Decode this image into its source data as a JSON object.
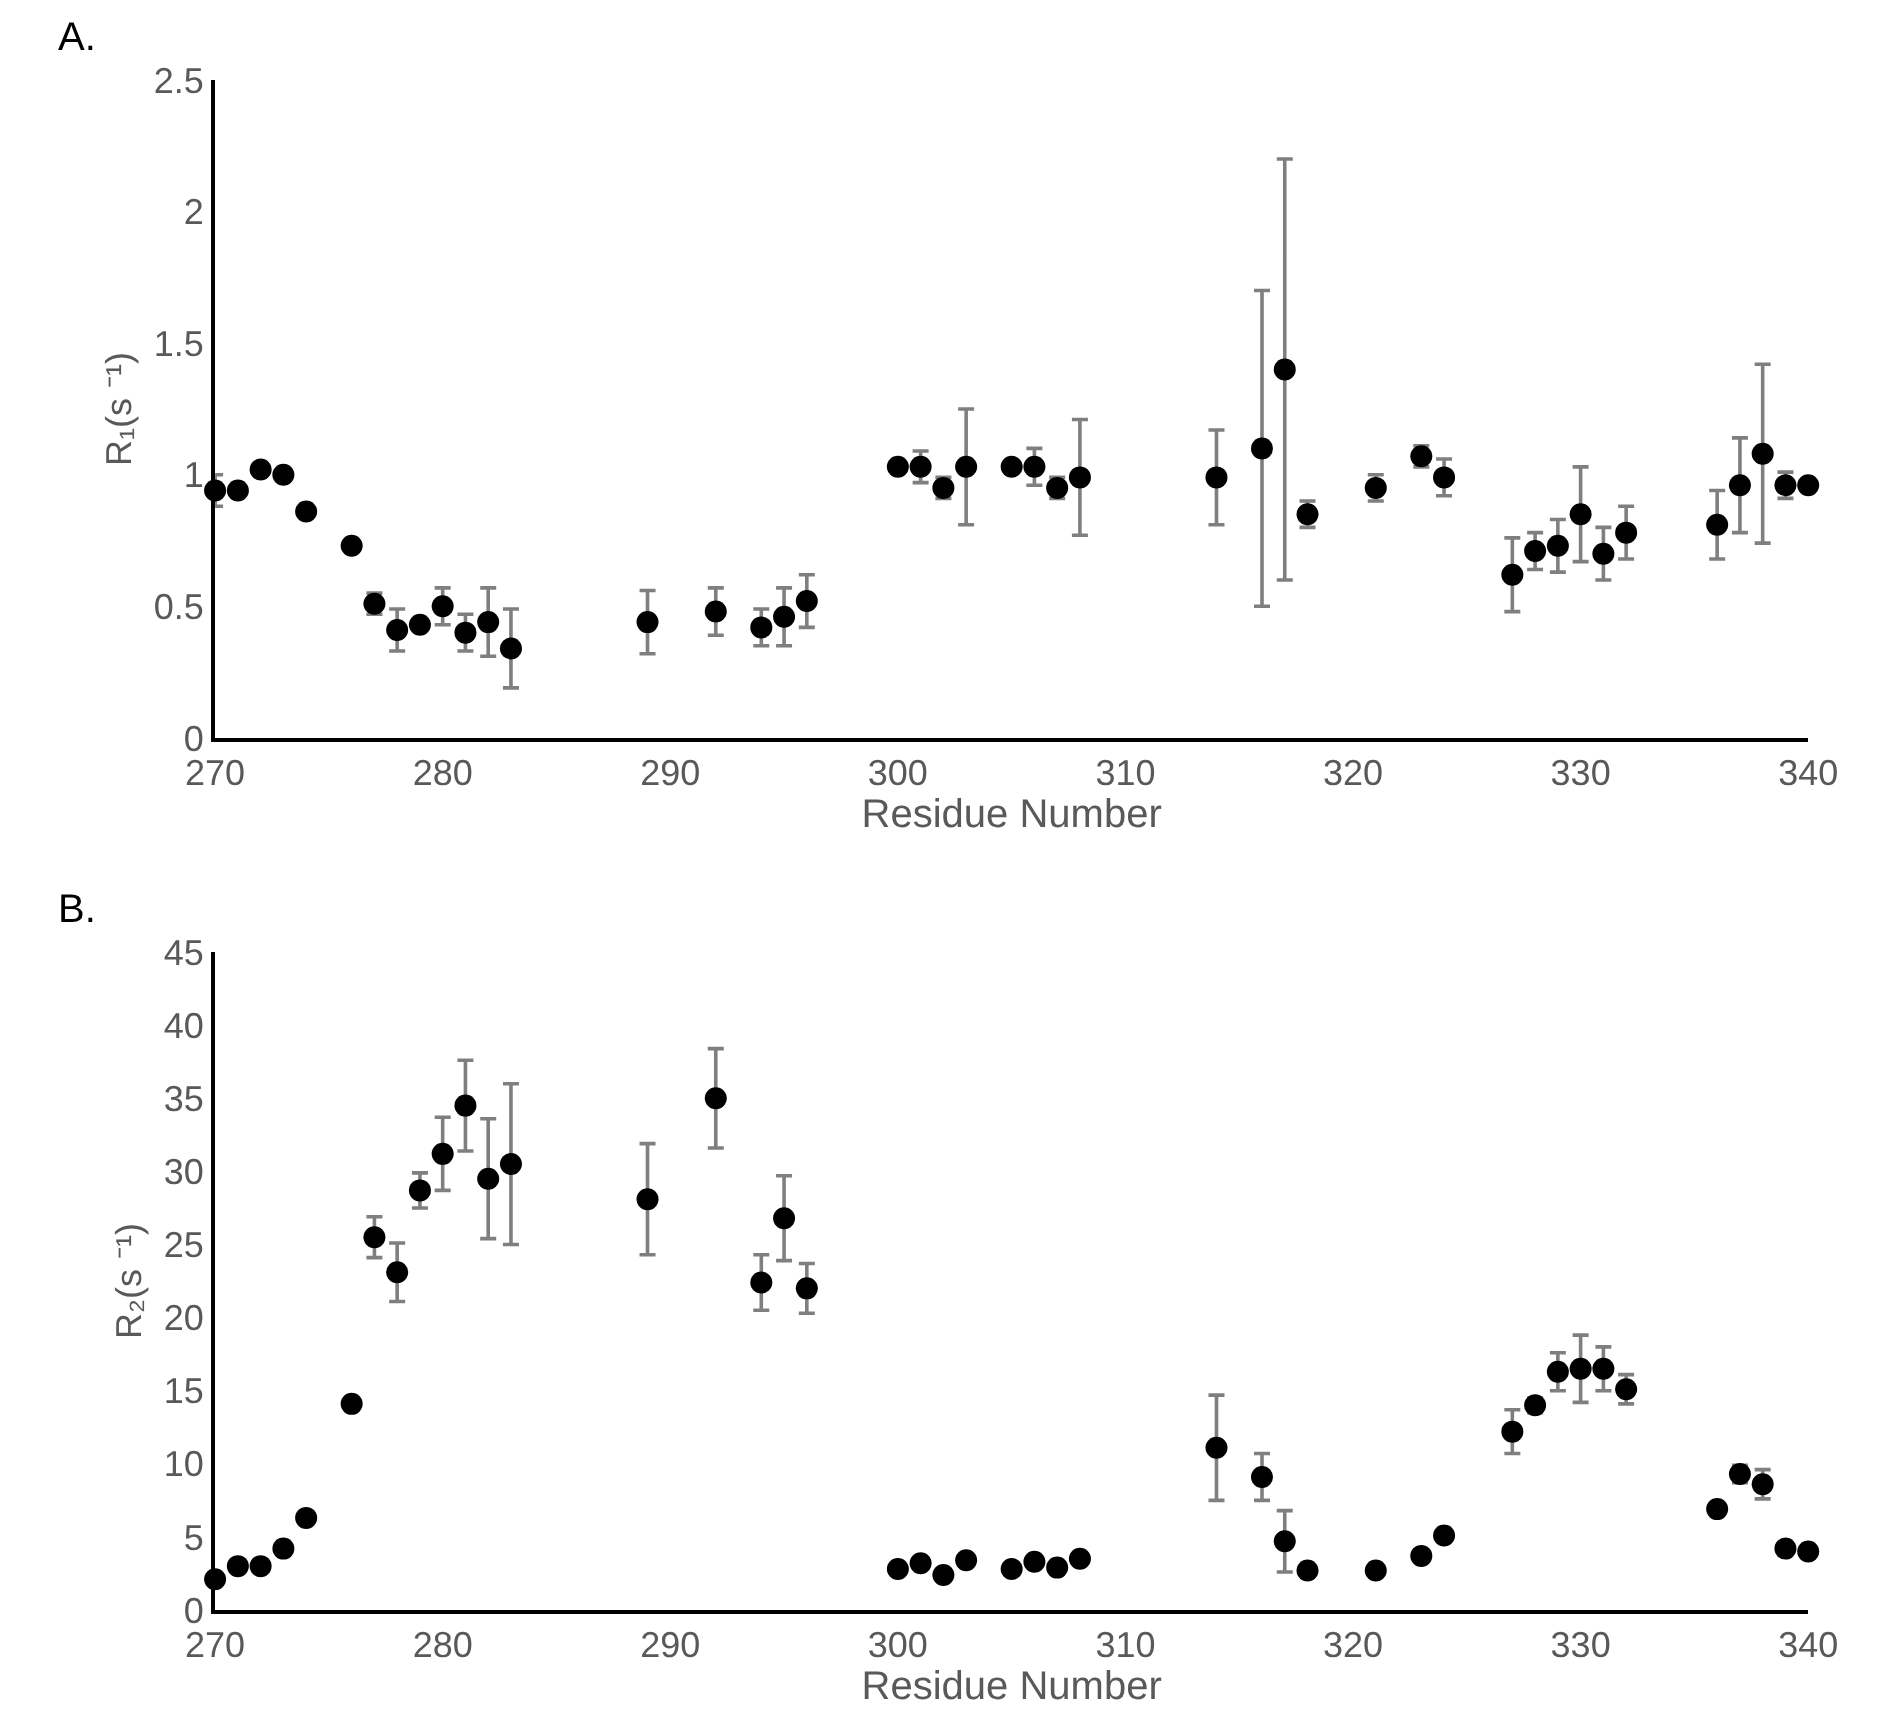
{
  "chart_data": [
    {
      "type": "scatter",
      "title": "A.",
      "xlabel": "Residue Number",
      "ylabel": "R₁(s ⁻¹)",
      "marker": "circle",
      "xlim": [
        270,
        340
      ],
      "xticks": [
        270,
        280,
        290,
        300,
        310,
        320,
        330,
        340
      ],
      "ylim": [
        0,
        2.5
      ],
      "yticks": [
        0,
        0.5,
        1,
        1.5,
        2,
        2.5
      ],
      "x": [
        270,
        271,
        272,
        273,
        274,
        276,
        277,
        278,
        279,
        280,
        281,
        282,
        283,
        289,
        292,
        294,
        295,
        296,
        300,
        301,
        302,
        303,
        305,
        306,
        307,
        308,
        314,
        316,
        317,
        318,
        321,
        323,
        324,
        327,
        328,
        329,
        330,
        331,
        332,
        336,
        337,
        338,
        339,
        340
      ],
      "series": [
        {
          "color": "#000000",
          "values": [
            0.94,
            0.94,
            1.02,
            1.0,
            0.86,
            0.73,
            0.51,
            0.41,
            0.43,
            0.5,
            0.4,
            0.44,
            0.34,
            0.44,
            0.48,
            0.42,
            0.46,
            0.52,
            1.03,
            1.03,
            0.95,
            1.03,
            1.03,
            1.03,
            0.95,
            0.99,
            0.99,
            1.1,
            1.4,
            0.85,
            0.95,
            1.07,
            0.99,
            0.62,
            0.71,
            0.73,
            0.85,
            0.7,
            0.78,
            0.81,
            0.96,
            1.08,
            0.96,
            0.96
          ],
          "errors": [
            0.06,
            null,
            null,
            null,
            null,
            null,
            0.04,
            0.08,
            null,
            0.07,
            0.07,
            0.13,
            0.15,
            0.12,
            0.09,
            0.07,
            0.11,
            0.1,
            null,
            0.06,
            0.04,
            0.22,
            null,
            0.07,
            0.04,
            0.22,
            0.18,
            0.6,
            0.8,
            0.05,
            0.05,
            0.04,
            0.07,
            0.14,
            0.07,
            0.1,
            0.18,
            0.1,
            0.1,
            0.13,
            0.18,
            0.34,
            0.05,
            null
          ]
        }
      ]
    },
    {
      "type": "scatter",
      "title": "B.",
      "xlabel": "Residue Number",
      "ylabel": "R₂(s ⁻¹)",
      "marker": "circle",
      "xlim": [
        270,
        340
      ],
      "xticks": [
        270,
        280,
        290,
        300,
        310,
        320,
        330,
        340
      ],
      "ylim": [
        0,
        45
      ],
      "yticks": [
        0,
        5,
        10,
        15,
        20,
        25,
        30,
        35,
        40,
        45
      ],
      "x": [
        270,
        271,
        272,
        273,
        274,
        276,
        277,
        278,
        279,
        280,
        281,
        282,
        283,
        289,
        292,
        294,
        295,
        296,
        300,
        301,
        302,
        303,
        305,
        306,
        307,
        308,
        314,
        316,
        317,
        318,
        321,
        323,
        324,
        327,
        328,
        329,
        330,
        331,
        332,
        336,
        337,
        338,
        339,
        340
      ],
      "series": [
        {
          "color": "#000000",
          "values": [
            2.1,
            3.0,
            3.0,
            4.2,
            6.3,
            14.1,
            25.5,
            23.1,
            28.7,
            31.2,
            34.5,
            29.5,
            30.5,
            28.1,
            35.0,
            22.4,
            26.8,
            22.0,
            2.8,
            3.2,
            2.4,
            3.4,
            2.8,
            3.3,
            2.9,
            3.5,
            11.1,
            9.1,
            4.7,
            2.7,
            2.7,
            3.7,
            5.1,
            12.2,
            14.0,
            16.3,
            16.5,
            16.5,
            15.1,
            6.9,
            9.3,
            8.6,
            4.2,
            4.0
          ],
          "errors": [
            null,
            null,
            null,
            null,
            null,
            null,
            1.4,
            2.0,
            1.2,
            2.5,
            3.1,
            4.1,
            5.5,
            3.8,
            3.4,
            1.9,
            2.9,
            1.7,
            null,
            null,
            null,
            null,
            null,
            null,
            null,
            null,
            3.6,
            1.6,
            2.1,
            null,
            null,
            null,
            null,
            1.5,
            0.5,
            1.3,
            2.3,
            1.5,
            1.0,
            null,
            0.6,
            1.0,
            null,
            null
          ]
        }
      ]
    }
  ]
}
